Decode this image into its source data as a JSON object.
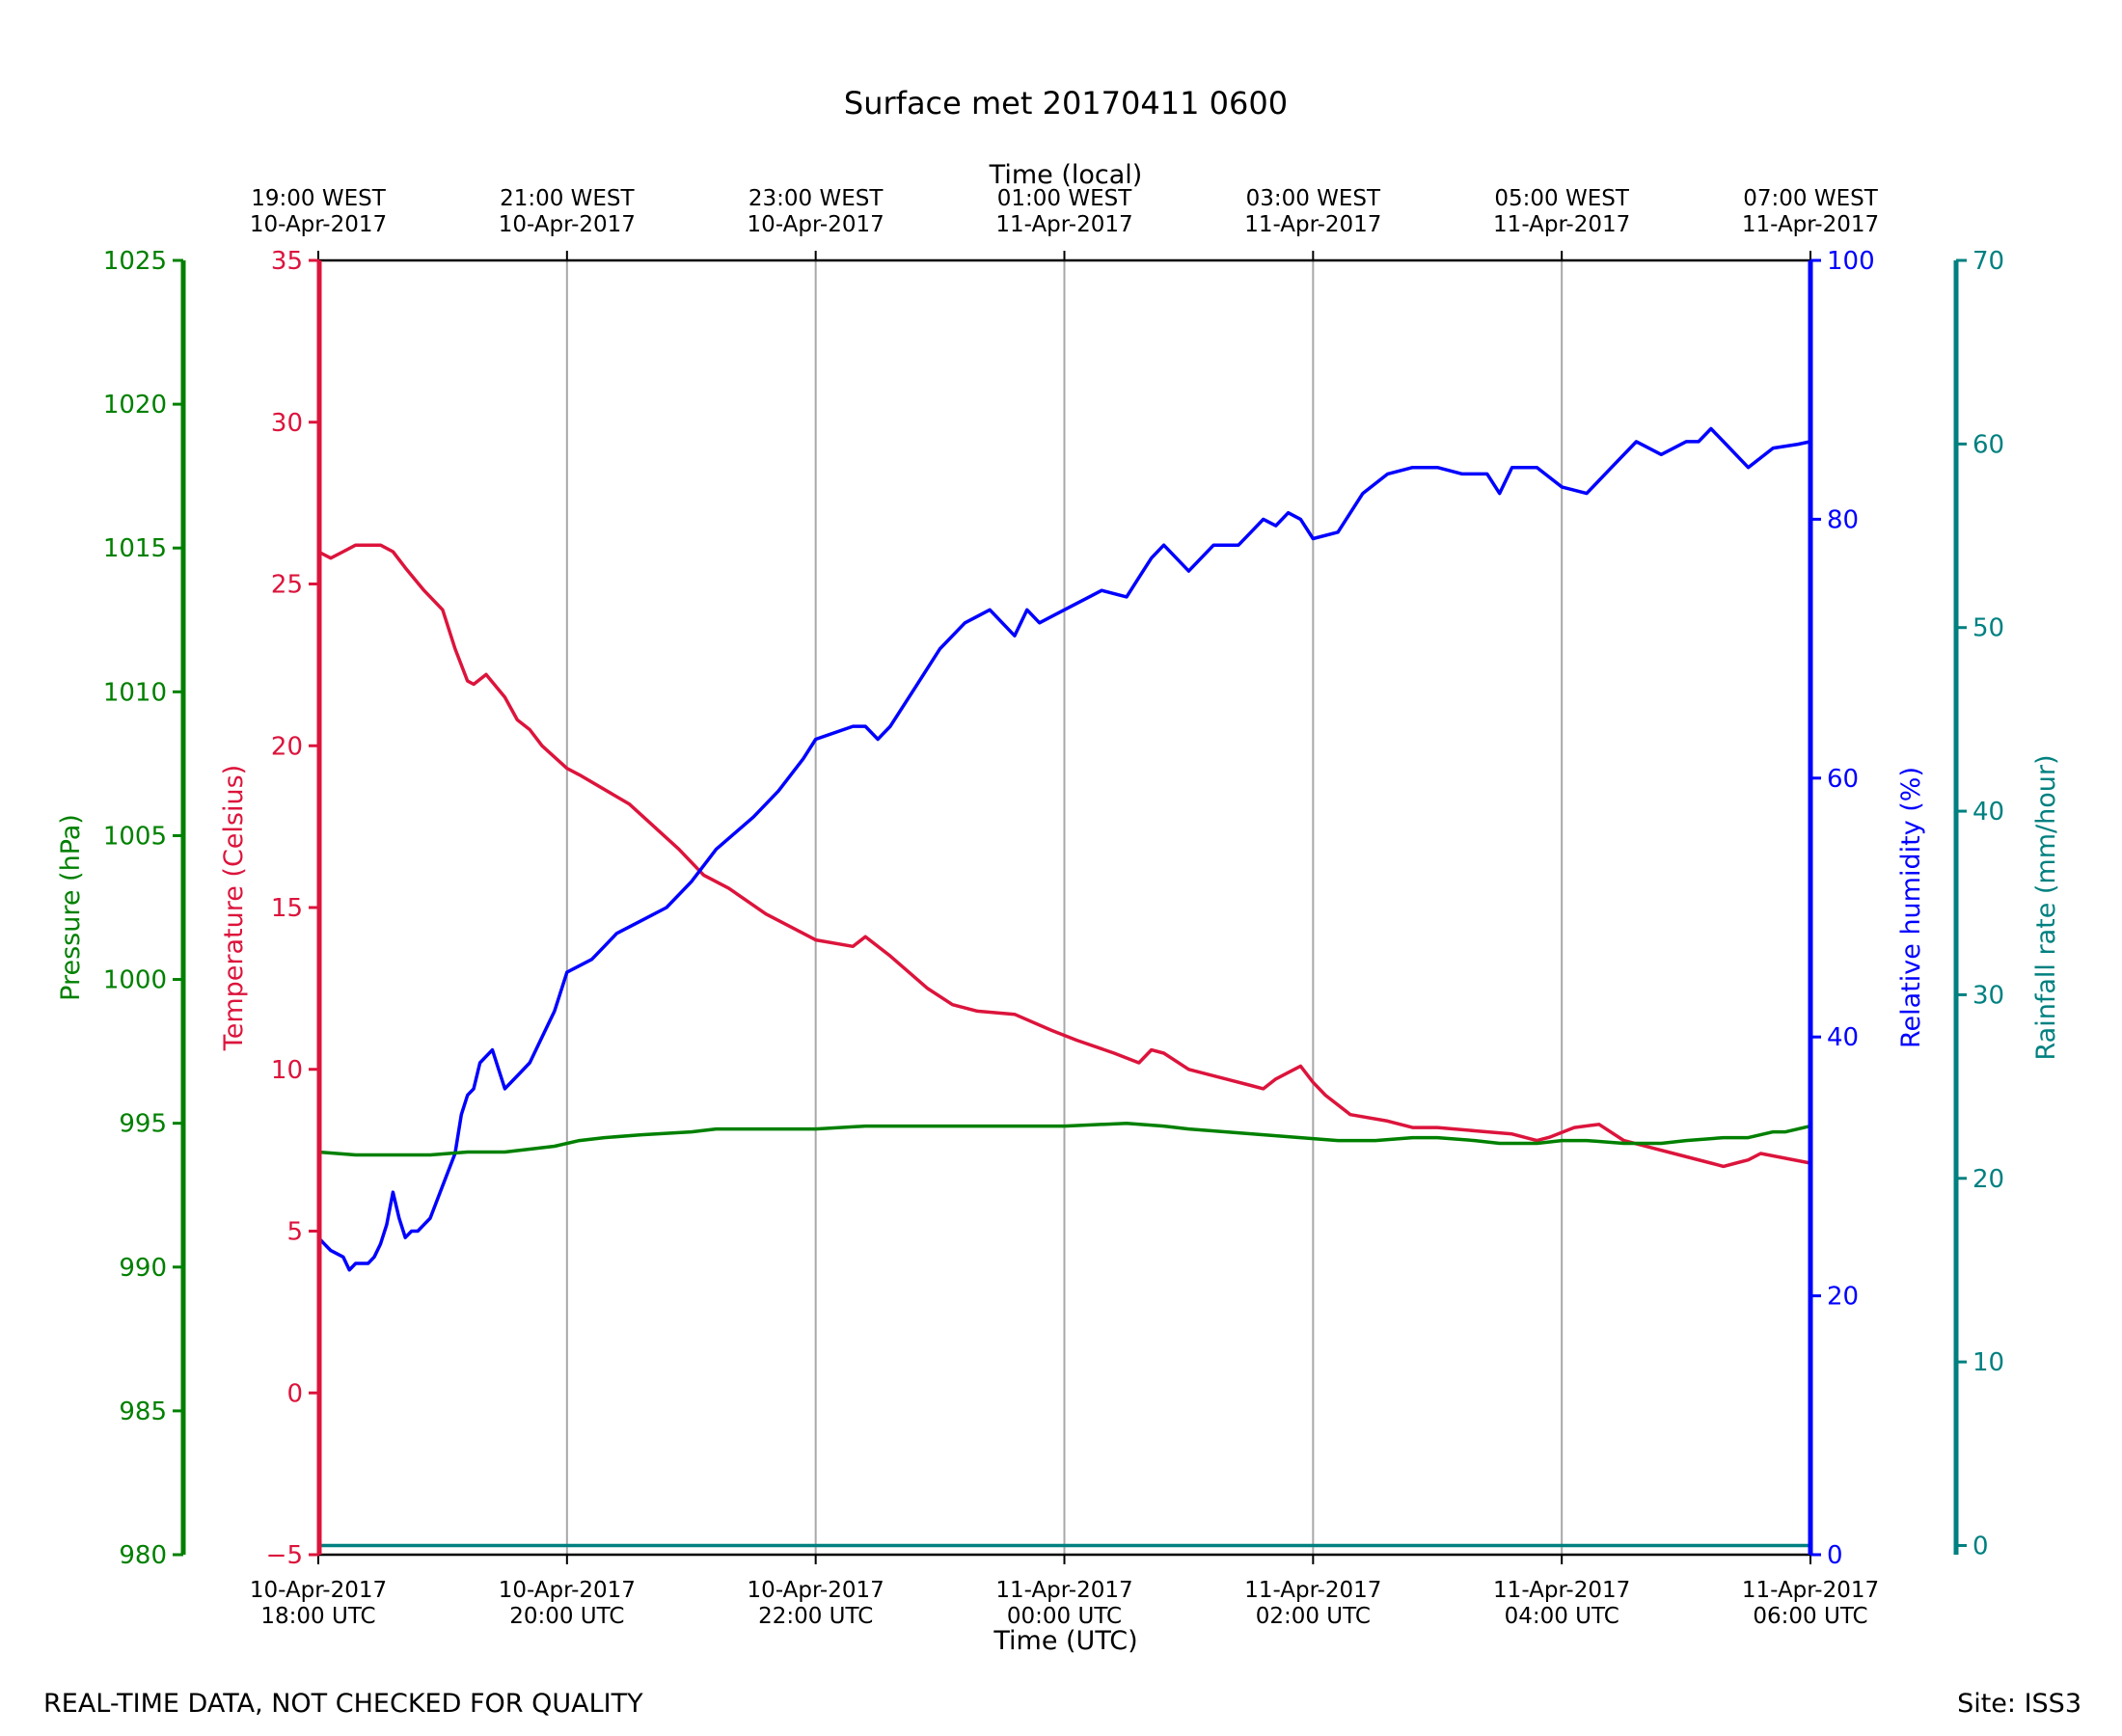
{
  "chart_data": {
    "type": "line",
    "title": "Surface met 20170411 0600",
    "xlabel": "Time (UTC)",
    "x2label": "Time (local)",
    "footer_left": "REAL-TIME DATA, NOT CHECKED FOR QUALITY",
    "footer_right": "Site: ISS3",
    "x_range_hours": [
      0,
      12
    ],
    "x_ticks": [
      {
        "h": 0,
        "date": "10-Apr-2017",
        "time": "18:00 UTC"
      },
      {
        "h": 2,
        "date": "10-Apr-2017",
        "time": "20:00 UTC"
      },
      {
        "h": 4,
        "date": "10-Apr-2017",
        "time": "22:00 UTC"
      },
      {
        "h": 6,
        "date": "11-Apr-2017",
        "time": "00:00 UTC"
      },
      {
        "h": 8,
        "date": "11-Apr-2017",
        "time": "02:00 UTC"
      },
      {
        "h": 10,
        "date": "11-Apr-2017",
        "time": "04:00 UTC"
      },
      {
        "h": 12,
        "date": "11-Apr-2017",
        "time": "06:00 UTC"
      }
    ],
    "x2_ticks": [
      {
        "h": 0,
        "time": "19:00 WEST",
        "date": "10-Apr-2017"
      },
      {
        "h": 2,
        "time": "21:00 WEST",
        "date": "10-Apr-2017"
      },
      {
        "h": 4,
        "time": "23:00 WEST",
        "date": "10-Apr-2017"
      },
      {
        "h": 6,
        "time": "01:00 WEST",
        "date": "11-Apr-2017"
      },
      {
        "h": 8,
        "time": "03:00 WEST",
        "date": "11-Apr-2017"
      },
      {
        "h": 10,
        "time": "05:00 WEST",
        "date": "11-Apr-2017"
      },
      {
        "h": 12,
        "time": "07:00 WEST",
        "date": "11-Apr-2017"
      }
    ],
    "grid": "vertical",
    "axes": {
      "pressure": {
        "label": "Pressure (hPa)",
        "color": "#008000",
        "ylim": [
          980,
          1025
        ],
        "ticks": [
          980,
          985,
          990,
          995,
          1000,
          1005,
          1010,
          1015,
          1020,
          1025
        ]
      },
      "temperature": {
        "label": "Temperature (Celsius)",
        "color": "#dc143c",
        "ylim": [
          -5,
          35
        ],
        "ticks": [
          -5,
          0,
          5,
          10,
          15,
          20,
          25,
          30,
          35
        ],
        "tick_labels": [
          "−5",
          "0",
          "5",
          "10",
          "15",
          "20",
          "25",
          "30",
          "35"
        ]
      },
      "humidity": {
        "label": "Relative humidity (%)",
        "color": "#0000ff",
        "ylim": [
          0,
          100
        ],
        "ticks": [
          0,
          20,
          40,
          60,
          80,
          100
        ]
      },
      "rainfall": {
        "label": "Rainfall rate (mm/hour)",
        "color": "#008080",
        "ylim": [
          -0.5,
          70
        ],
        "ticks": [
          0,
          10,
          20,
          30,
          40,
          50,
          60,
          70
        ]
      }
    },
    "series": [
      {
        "axis": "temperature",
        "color": "#dc143c",
        "x": [
          0,
          0.1,
          0.2,
          0.3,
          0.4,
          0.5,
          0.6,
          0.7,
          0.85,
          1.0,
          1.1,
          1.2,
          1.25,
          1.35,
          1.5,
          1.6,
          1.7,
          1.8,
          2.0,
          2.1,
          2.5,
          2.7,
          2.9,
          3.1,
          3.3,
          3.6,
          3.9,
          4.0,
          4.3,
          4.4,
          4.6,
          4.9,
          5.1,
          5.3,
          5.6,
          5.9,
          6.1,
          6.4,
          6.6,
          6.7,
          6.8,
          7.0,
          7.3,
          7.5,
          7.6,
          7.7,
          7.8,
          7.9,
          8.0,
          8.1,
          8.3,
          8.6,
          8.8,
          9.0,
          9.3,
          9.6,
          9.8,
          9.9,
          10.1,
          10.3,
          10.5,
          10.7,
          10.9,
          11.2,
          11.3,
          11.4,
          11.5,
          11.6,
          12.0
        ],
        "values": [
          26.0,
          25.8,
          26.0,
          26.2,
          26.2,
          26.2,
          26.0,
          25.5,
          24.8,
          24.2,
          23.0,
          22.0,
          21.9,
          22.2,
          21.5,
          20.8,
          20.5,
          20.0,
          19.3,
          19.1,
          18.2,
          17.5,
          16.8,
          16.0,
          15.6,
          14.8,
          14.2,
          14.0,
          13.8,
          14.1,
          13.5,
          12.5,
          12.0,
          11.8,
          11.7,
          11.2,
          10.9,
          10.5,
          10.2,
          10.6,
          10.5,
          10.0,
          9.7,
          9.5,
          9.4,
          9.7,
          9.9,
          10.1,
          9.6,
          9.2,
          8.6,
          8.4,
          8.2,
          8.2,
          8.1,
          8.0,
          7.8,
          7.9,
          8.2,
          8.3,
          7.8,
          7.6,
          7.4,
          7.1,
          7.0,
          7.1,
          7.2,
          7.4,
          7.1
        ]
      },
      {
        "axis": "humidity",
        "color": "#0000ff",
        "x": [
          0,
          0.05,
          0.1,
          0.2,
          0.25,
          0.3,
          0.4,
          0.45,
          0.5,
          0.55,
          0.6,
          0.65,
          0.7,
          0.75,
          0.8,
          0.9,
          1.0,
          1.1,
          1.15,
          1.2,
          1.25,
          1.3,
          1.4,
          1.5,
          1.6,
          1.7,
          1.8,
          1.9,
          2.0,
          2.2,
          2.3,
          2.4,
          2.6,
          2.8,
          3.0,
          3.2,
          3.5,
          3.7,
          3.9,
          4.0,
          4.3,
          4.4,
          4.5,
          4.6,
          4.8,
          5.0,
          5.2,
          5.4,
          5.6,
          5.7,
          5.8,
          6.0,
          6.2,
          6.3,
          6.5,
          6.6,
          6.7,
          6.8,
          7.0,
          7.2,
          7.4,
          7.5,
          7.6,
          7.7,
          7.8,
          7.9,
          8.0,
          8.2,
          8.4,
          8.6,
          8.8,
          9.0,
          9.2,
          9.4,
          9.5,
          9.6,
          9.8,
          10.0,
          10.2,
          10.4,
          10.6,
          10.8,
          11.0,
          11.1,
          11.2,
          11.3,
          11.5,
          11.7,
          11.9,
          12.0
        ],
        "values": [
          24.5,
          24,
          23.5,
          23,
          22,
          22.5,
          22.5,
          23,
          24,
          25.5,
          28,
          26,
          24.5,
          25,
          25,
          26,
          28.5,
          31,
          34,
          35.5,
          36,
          38,
          39,
          36,
          37,
          38,
          40,
          42,
          45,
          46,
          47,
          48,
          49,
          50,
          52,
          54.5,
          57,
          59,
          61.5,
          63,
          64,
          64,
          63,
          64,
          67,
          70,
          72,
          73,
          71,
          73,
          72,
          73,
          74,
          74.5,
          74,
          75.5,
          77,
          78,
          76,
          78,
          78,
          79,
          80,
          79.5,
          80.5,
          80,
          78.5,
          79,
          82,
          83.5,
          84,
          84,
          83.5,
          83.5,
          82,
          84,
          84,
          82.5,
          82,
          84,
          86,
          85,
          86,
          86,
          87,
          86,
          84,
          85.5,
          85.8,
          86
        ]
      },
      {
        "axis": "pressure",
        "color": "#008000",
        "x": [
          0,
          0.3,
          0.6,
          0.9,
          1.2,
          1.5,
          1.7,
          1.9,
          2.1,
          2.3,
          2.6,
          3.0,
          3.2,
          3.6,
          4.0,
          4.4,
          4.8,
          5.0,
          5.2,
          5.6,
          6.0,
          6.5,
          6.8,
          7.0,
          7.3,
          7.6,
          7.9,
          8.2,
          8.5,
          8.8,
          9.0,
          9.3,
          9.5,
          9.8,
          10.0,
          10.2,
          10.5,
          10.8,
          11.0,
          11.3,
          11.5,
          11.6,
          11.7,
          11.8,
          11.9,
          12.0
        ],
        "values": [
          994.0,
          993.9,
          993.9,
          993.9,
          994.0,
          994.0,
          994.1,
          994.2,
          994.4,
          994.5,
          994.6,
          994.7,
          994.8,
          994.8,
          994.8,
          994.9,
          994.9,
          994.9,
          994.9,
          994.9,
          994.9,
          995.0,
          994.9,
          994.8,
          994.7,
          994.6,
          994.5,
          994.4,
          994.4,
          994.5,
          994.5,
          994.4,
          994.3,
          994.3,
          994.4,
          994.4,
          994.3,
          994.3,
          994.4,
          994.5,
          994.5,
          994.6,
          994.7,
          994.7,
          994.8,
          994.9
        ]
      },
      {
        "axis": "rainfall",
        "color": "#008080",
        "x": [
          0,
          12
        ],
        "values": [
          0,
          0
        ]
      }
    ]
  }
}
